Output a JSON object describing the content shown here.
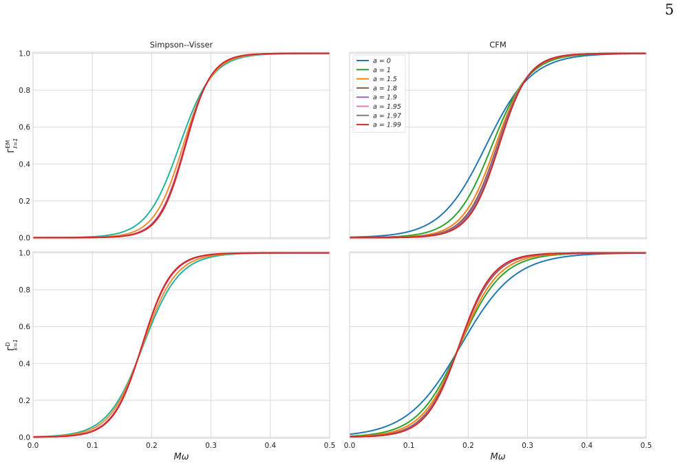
{
  "page_number": "5",
  "chart_data": [
    {
      "type": "line",
      "title": "Simpson--Visser",
      "ylabel": "Γ^EM_{ℓ=1}",
      "xlabel": "",
      "xlim": [
        0.0,
        0.5
      ],
      "ylim": [
        0.0,
        1.0
      ],
      "grid": true,
      "xticks": [
        "0.0",
        "0.1",
        "0.2",
        "0.3",
        "0.4",
        "0.5"
      ],
      "yticks": [
        "0.0",
        "0.2",
        "0.4",
        "0.6",
        "0.8",
        "1.0"
      ],
      "series": [
        {
          "color": "#1fb3a0",
          "mid": 0.247,
          "k": 36
        },
        {
          "color": "#f08a2a",
          "mid": 0.253,
          "k": 41
        },
        {
          "color": "#c44a8a",
          "mid": 0.256,
          "k": 45
        },
        {
          "color": "#d62728",
          "mid": 0.257,
          "k": 46
        }
      ]
    },
    {
      "type": "line",
      "title": "CFM",
      "ylabel": "",
      "xlabel": "",
      "xlim": [
        0.0,
        0.5
      ],
      "ylim": [
        0.0,
        1.0
      ],
      "grid": true,
      "xticks": [
        "0.0",
        "0.1",
        "0.2",
        "0.3",
        "0.4",
        "0.5"
      ],
      "yticks": [
        "0.0",
        "0.2",
        "0.4",
        "0.6",
        "0.8",
        "1.0"
      ],
      "legend": {
        "placement": "top-left"
      },
      "series": [
        {
          "name": "a = 0",
          "color": "#1f77b4",
          "mid": 0.23,
          "k": 26
        },
        {
          "name": "a = 1",
          "color": "#2ca02c",
          "mid": 0.24,
          "k": 32
        },
        {
          "name": "a = 1.5",
          "color": "#ff7f0e",
          "mid": 0.246,
          "k": 36
        },
        {
          "name": "a = 1.8",
          "color": "#8c564b",
          "mid": 0.249,
          "k": 38
        },
        {
          "name": "a = 1.9",
          "color": "#9467bd",
          "mid": 0.25,
          "k": 39
        },
        {
          "name": "a = 1.95",
          "color": "#e377c2",
          "mid": 0.251,
          "k": 39.5
        },
        {
          "name": "a = 1.97",
          "color": "#7f7f7f",
          "mid": 0.251,
          "k": 39.8
        },
        {
          "name": "a = 1.99",
          "color": "#d62728",
          "mid": 0.252,
          "k": 40
        }
      ]
    },
    {
      "type": "line",
      "title": "",
      "ylabel": "Γ^D_{k=1}",
      "xlabel": "Mω",
      "xlim": [
        0.0,
        0.5
      ],
      "ylim": [
        0.0,
        1.0
      ],
      "grid": true,
      "xticks": [
        "0.0",
        "0.1",
        "0.2",
        "0.3",
        "0.4",
        "0.5"
      ],
      "yticks": [
        "0.0",
        "0.2",
        "0.4",
        "0.6",
        "0.8",
        "1.0"
      ],
      "series": [
        {
          "color": "#1fb3a0",
          "mid": 0.186,
          "k": 33
        },
        {
          "color": "#f08a2a",
          "mid": 0.185,
          "k": 36
        },
        {
          "color": "#c44a8a",
          "mid": 0.184,
          "k": 40
        },
        {
          "color": "#d62728",
          "mid": 0.184,
          "k": 41
        }
      ]
    },
    {
      "type": "line",
      "title": "",
      "ylabel": "",
      "xlabel": "Mω",
      "xlim": [
        0.0,
        0.5
      ],
      "ylim": [
        0.0,
        1.0
      ],
      "grid": true,
      "xticks": [
        "0.0",
        "0.1",
        "0.2",
        "0.3",
        "0.4",
        "0.5"
      ],
      "yticks": [
        "0.0",
        "0.2",
        "0.4",
        "0.6",
        "0.8",
        "1.0"
      ],
      "series": [
        {
          "color": "#1f77b4",
          "mid": 0.188,
          "k": 22
        },
        {
          "color": "#2ca02c",
          "mid": 0.186,
          "k": 28
        },
        {
          "color": "#ff7f0e",
          "mid": 0.186,
          "k": 31
        },
        {
          "color": "#8c564b",
          "mid": 0.185,
          "k": 34
        },
        {
          "color": "#9467bd",
          "mid": 0.185,
          "k": 35
        },
        {
          "color": "#e377c2",
          "mid": 0.185,
          "k": 35.5
        },
        {
          "color": "#7f7f7f",
          "mid": 0.185,
          "k": 35.8
        },
        {
          "color": "#d62728",
          "mid": 0.185,
          "k": 36
        }
      ]
    }
  ]
}
